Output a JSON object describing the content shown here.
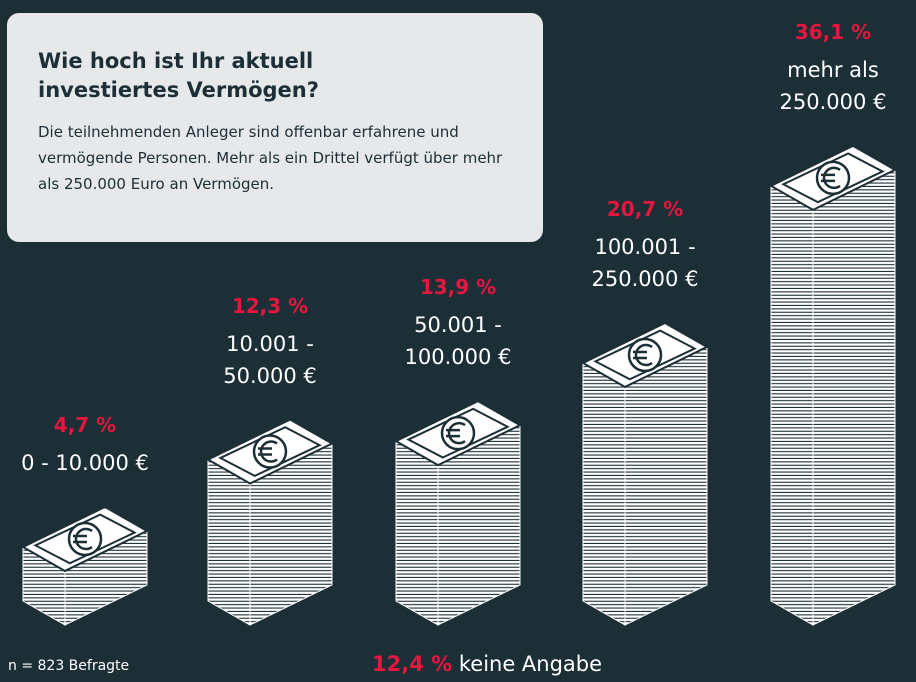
{
  "header": {
    "title": "Wie hoch ist Ihr aktuell investiertes Vermögen?",
    "text": "Die teilnehmenden Anleger sind offenbar erfahrene und vermögende Personen. Mehr als ein Drittel verfügt über mehr als 250.000 Euro an Vermögen."
  },
  "chart_data": {
    "type": "bar",
    "categories": [
      "0 - 10.000 €",
      "10.001 - 50.000 €",
      "50.001 - 100.000 €",
      "100.001 - 250.000 €",
      "mehr als 250.000 €"
    ],
    "values": [
      4.7,
      12.3,
      13.9,
      20.7,
      36.1
    ],
    "value_labels": [
      "4,7 %",
      "12,3 %",
      "13,9 %",
      "20,7 %",
      "36,1 %"
    ],
    "color": "#e5173f"
  },
  "footer": {
    "sample": "n = 823 Befragte",
    "no_answer_value": "12,4 %",
    "no_answer_text": "keine Angabe"
  }
}
